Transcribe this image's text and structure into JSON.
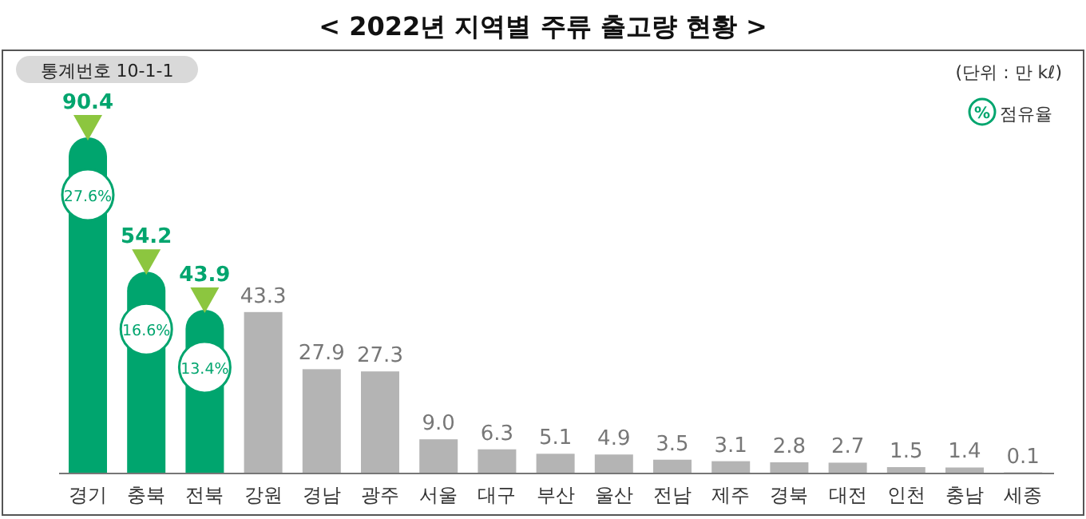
{
  "chart_data": {
    "type": "bar",
    "title": "< 2022년 지역별 주류 출고량 현황 >",
    "categories": [
      "경기",
      "충북",
      "전북",
      "강원",
      "경남",
      "광주",
      "서울",
      "대구",
      "부산",
      "울산",
      "전남",
      "제주",
      "경북",
      "대전",
      "인천",
      "충남",
      "세종"
    ],
    "values": [
      90.4,
      54.2,
      43.9,
      43.3,
      27.9,
      27.3,
      9.0,
      6.3,
      5.1,
      4.9,
      3.5,
      3.1,
      2.8,
      2.7,
      1.5,
      1.4,
      0.1
    ],
    "colors": [
      "#00a56e",
      "#00a56e",
      "#00a56e",
      "#b4b4b4",
      "#b4b4b4",
      "#b4b4b4",
      "#b4b4b4",
      "#b4b4b4",
      "#b4b4b4",
      "#b4b4b4",
      "#b4b4b4",
      "#b4b4b4",
      "#b4b4b4",
      "#b4b4b4",
      "#b4b4b4",
      "#b4b4b4",
      "#b4b4b4"
    ],
    "value_labels": [
      "90.4",
      "54.2",
      "43.9",
      "43.3",
      "27.9",
      "27.3",
      "9.0",
      "6.3",
      "5.1",
      "4.9",
      "3.5",
      "3.1",
      "2.8",
      "2.7",
      "1.5",
      "1.4",
      "0.1"
    ],
    "annotations": [
      "통계번호 10-1-1",
      "(단위 : 만 kℓ)",
      "%",
      "점유율",
      {
        "text": "27.6%",
        "x": "경기"
      },
      {
        "text": "16.6%",
        "x": "충북"
      },
      {
        "text": "13.4%",
        "x": "전북"
      }
    ]
  }
}
